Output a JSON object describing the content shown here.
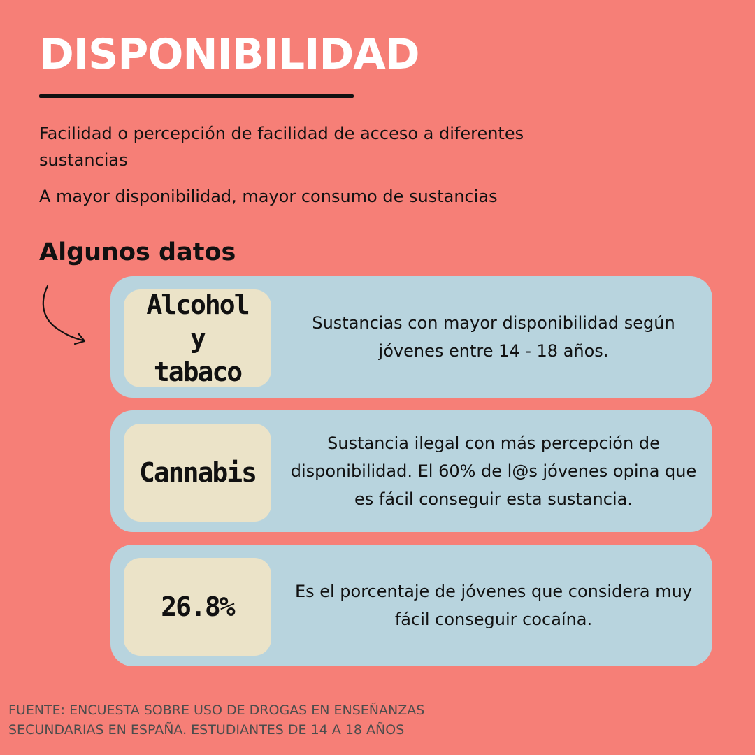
{
  "title": "DISPONIBILIDAD",
  "intro": {
    "line1": "Facilidad o percepción de facilidad de acceso a diferentes sustancias",
    "line2": "A mayor disponibilidad, mayor consumo de sustancias"
  },
  "section_title": "Algunos datos",
  "icons": {
    "arrow": "curved-arrow-icon"
  },
  "colors": {
    "background": "#f67f77",
    "title": "#ffffff",
    "card": "#b8d4de",
    "badge": "#ebe3c8"
  },
  "cards": [
    {
      "badge": "Alcohol y\ntabaco",
      "text": "Sustancias con mayor disponibilidad según jóvenes entre 14 - 18 años."
    },
    {
      "badge": "Cannabis",
      "text": "Sustancia ilegal con más percepción de disponibilidad. El 60% de l@s jóvenes opina que es fácil conseguir esta sustancia."
    },
    {
      "badge": "26.8%",
      "text": "Es el porcentaje de jóvenes que considera muy fácil conseguir cocaína."
    }
  ],
  "source": "FUENTE: ENCUESTA SOBRE USO DE DROGAS EN ENSEÑANZAS\nSECUNDARIAS EN ESPAÑA. ESTUDIANTES DE 14 A 18 AÑOS"
}
